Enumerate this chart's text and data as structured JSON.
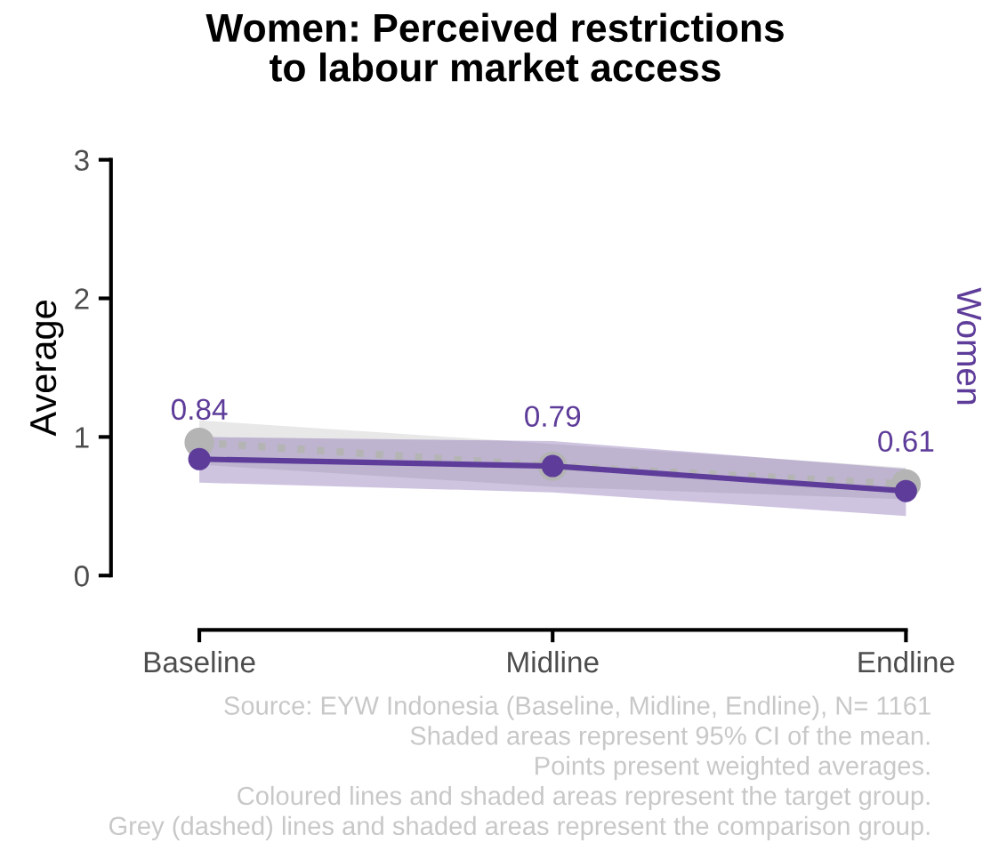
{
  "chart_data": {
    "type": "line",
    "title": "Women: Perceived restrictions\nto labour market access",
    "ylabel": "Average",
    "categories": [
      "Baseline",
      "Midline",
      "Endline"
    ],
    "series": [
      {
        "color": "#b4b4b4",
        "values": [
          0.96,
          0.79,
          0.66
        ],
        "lower": [
          0.8,
          0.64,
          0.55
        ],
        "upper": [
          1.12,
          0.95,
          0.78
        ],
        "line_style": "dotted",
        "marker": "circle"
      },
      {
        "name": "Women",
        "color": "#5e3c99",
        "values": [
          0.84,
          0.79,
          0.61
        ],
        "lower": [
          0.67,
          0.6,
          0.43
        ],
        "upper": [
          1.0,
          0.97,
          0.77
        ],
        "line_style": "solid",
        "marker": "circle",
        "value_labels": [
          "0.84",
          "0.79",
          "0.61"
        ]
      }
    ],
    "ylim": [
      0,
      3
    ],
    "yticks": [
      0,
      1,
      2,
      3
    ],
    "grid": false,
    "legend": false,
    "annotations": [
      "Source: EYW Indonesia (Baseline, Midline, Endline), N= 1161",
      "Shaded areas represent 95% CI of the mean.",
      "Points present weighted averages.",
      "Coloured lines and shaded areas represent the target group.",
      "Grey (dashed) lines and shaded areas represent the comparison group."
    ]
  }
}
